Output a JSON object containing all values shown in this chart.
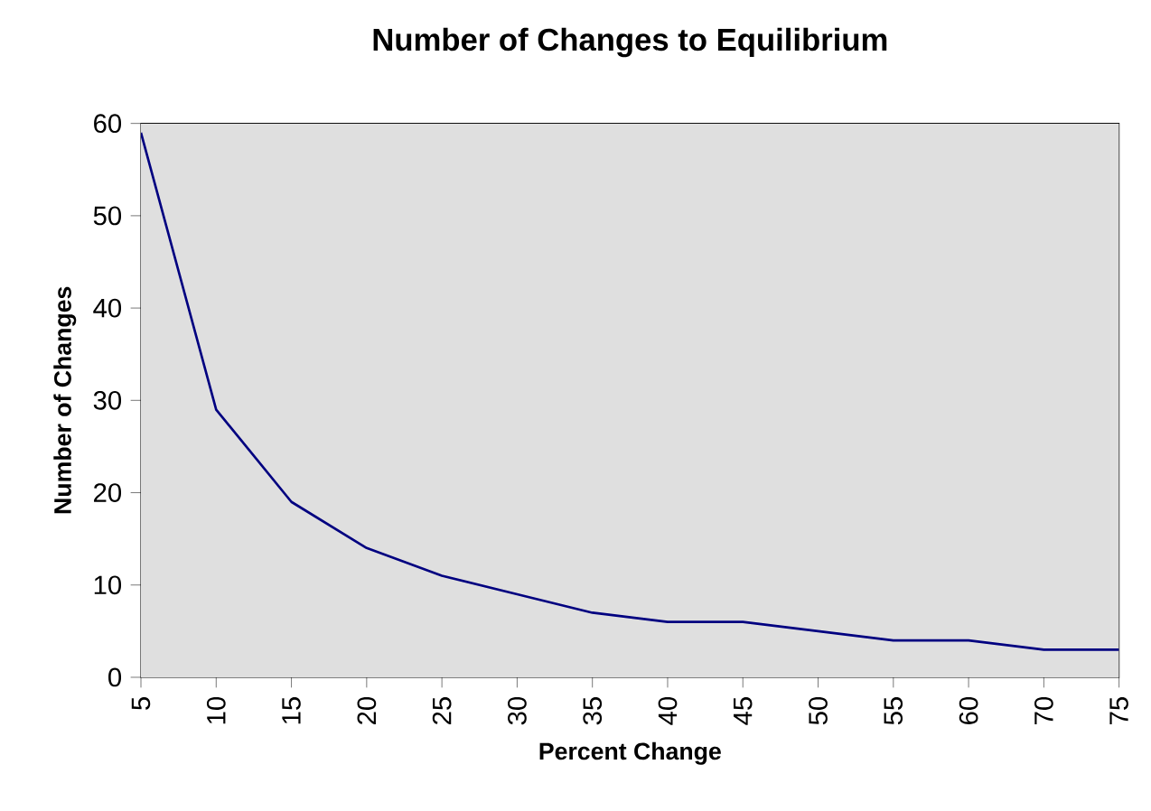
{
  "chart_data": {
    "type": "line",
    "title": "Number of Changes to Equilibrium",
    "xlabel": "Percent Change",
    "ylabel": "Number of Changes",
    "categories": [
      "5",
      "10",
      "15",
      "20",
      "25",
      "30",
      "35",
      "40",
      "45",
      "50",
      "55",
      "60",
      "70",
      "75"
    ],
    "series": [
      {
        "color": "#000080",
        "values": [
          59,
          29,
          19,
          14,
          11,
          9,
          7,
          6,
          6,
          5,
          4,
          4,
          3,
          3
        ]
      }
    ],
    "ylim": [
      0,
      60
    ],
    "yticks": [
      0,
      10,
      20,
      30,
      40,
      50,
      60
    ],
    "grid": false,
    "marker": "none",
    "line_style": "solid"
  }
}
